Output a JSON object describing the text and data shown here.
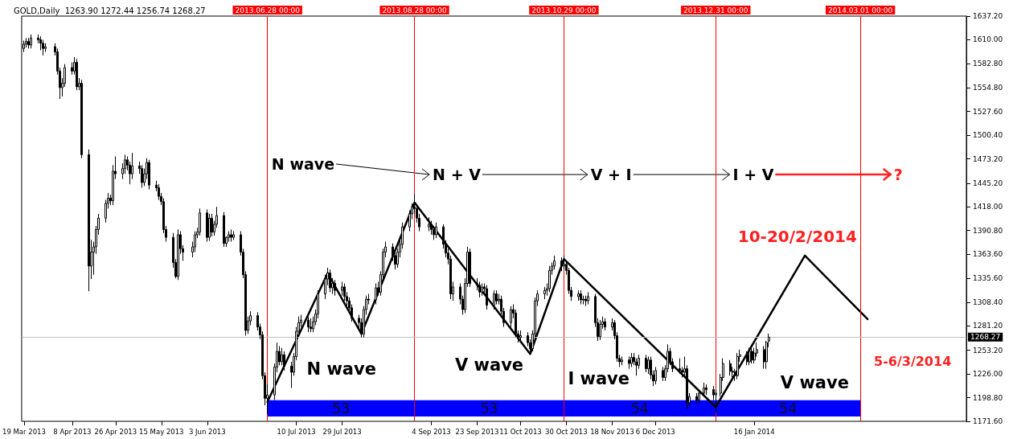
{
  "chart_data": {
    "type": "candlestick",
    "title": "GOLD,Daily  1263.90 1272.44 1256.74 1268.27",
    "xlim": [
      "2013-03-18",
      "2014-04-14"
    ],
    "xticks": [
      {
        "value": "2013-03-19",
        "label": "19 Mar 2013"
      },
      {
        "value": "2013-04-08",
        "label": "8 Apr 2013"
      },
      {
        "value": "2013-04-26",
        "label": "26 Apr 2013"
      },
      {
        "value": "2013-05-15",
        "label": "15 May 2013"
      },
      {
        "value": "2013-06-03",
        "label": "3 Jun 2013"
      },
      {
        "value": "2013-07-10",
        "label": "10 Jul 2013"
      },
      {
        "value": "2013-07-29",
        "label": "29 Jul 2013"
      },
      {
        "value": "2013-09-04",
        "label": "4 Sep 2013"
      },
      {
        "value": "2013-09-23",
        "label": "23 Sep 2013"
      },
      {
        "value": "2013-10-11",
        "label": "11 Oct 2013"
      },
      {
        "value": "2013-10-30",
        "label": "30 Oct 2013"
      },
      {
        "value": "2013-11-18",
        "label": "18 Nov 2013"
      },
      {
        "value": "2013-12-06",
        "label": "6 Dec 2013"
      },
      {
        "value": "2014-01-16",
        "label": "16 Jan 2014"
      }
    ],
    "ylim": [
      1171.6,
      1637.2
    ],
    "yticks": [
      {
        "value": 1171.6,
        "label": "1171.60"
      },
      {
        "value": 1198.8,
        "label": "1198.80"
      },
      {
        "value": 1226,
        "label": "1226.00"
      },
      {
        "value": 1253.2,
        "label": "1253.20"
      },
      {
        "value": 1281.2,
        "label": "1281.20"
      },
      {
        "value": 1308.4,
        "label": "1308.40"
      },
      {
        "value": 1335.6,
        "label": "1335.60"
      },
      {
        "value": 1363.6,
        "label": "1363.60"
      },
      {
        "value": 1390.8,
        "label": "1390.80"
      },
      {
        "value": 1418,
        "label": "1418.00"
      },
      {
        "value": 1445.2,
        "label": "1445.20"
      },
      {
        "value": 1473.2,
        "label": "1473.20"
      },
      {
        "value": 1500.4,
        "label": "1500.40"
      },
      {
        "value": 1527.6,
        "label": "1527.60"
      },
      {
        "value": 1554.8,
        "label": "1554.80"
      },
      {
        "value": 1582.8,
        "label": "1582.80"
      },
      {
        "value": 1610,
        "label": "1610.00"
      },
      {
        "value": 1637.2,
        "label": "1637.20"
      }
    ],
    "series": [
      {
        "color": "#000000",
        "x": [
          "2013-03-19",
          "2013-03-20",
          "2013-03-21",
          "2013-03-22",
          "2013-03-25",
          "2013-03-26",
          "2013-03-27",
          "2013-03-28",
          "2013-04-01",
          "2013-04-02",
          "2013-04-03",
          "2013-04-04",
          "2013-04-05",
          "2013-04-08",
          "2013-04-09",
          "2013-04-10",
          "2013-04-11",
          "2013-04-12",
          "2013-04-15",
          "2013-04-16",
          "2013-04-17",
          "2013-04-18",
          "2013-04-19",
          "2013-04-22",
          "2013-04-23",
          "2013-04-24",
          "2013-04-25",
          "2013-04-26",
          "2013-04-29",
          "2013-04-30",
          "2013-05-01",
          "2013-05-02",
          "2013-05-03",
          "2013-05-06",
          "2013-05-07",
          "2013-05-08",
          "2013-05-09",
          "2013-05-10",
          "2013-05-13",
          "2013-05-14",
          "2013-05-15",
          "2013-05-16",
          "2013-05-17",
          "2013-05-20",
          "2013-05-21",
          "2013-05-22",
          "2013-05-23",
          "2013-05-24",
          "2013-05-28",
          "2013-05-29",
          "2013-05-30",
          "2013-05-31",
          "2013-06-03",
          "2013-06-04",
          "2013-06-05",
          "2013-06-06",
          "2013-06-07",
          "2013-06-10",
          "2013-06-11",
          "2013-06-12",
          "2013-06-13",
          "2013-06-14",
          "2013-06-17",
          "2013-06-18",
          "2013-06-19",
          "2013-06-20",
          "2013-06-21",
          "2013-06-24",
          "2013-06-25",
          "2013-06-26",
          "2013-06-27",
          "2013-06-28",
          "2013-07-01",
          "2013-07-02",
          "2013-07-03",
          "2013-07-04",
          "2013-07-05",
          "2013-07-08",
          "2013-07-09",
          "2013-07-10",
          "2013-07-11",
          "2013-07-12",
          "2013-07-15",
          "2013-07-16",
          "2013-07-17",
          "2013-07-18",
          "2013-07-19",
          "2013-07-22",
          "2013-07-23",
          "2013-07-24",
          "2013-07-25",
          "2013-07-26",
          "2013-07-29",
          "2013-07-30",
          "2013-07-31",
          "2013-08-01",
          "2013-08-02",
          "2013-08-05",
          "2013-08-06",
          "2013-08-07",
          "2013-08-08",
          "2013-08-09",
          "2013-08-12",
          "2013-08-13",
          "2013-08-14",
          "2013-08-15",
          "2013-08-16",
          "2013-08-19",
          "2013-08-20",
          "2013-08-21",
          "2013-08-22",
          "2013-08-23",
          "2013-08-26",
          "2013-08-27",
          "2013-08-28",
          "2013-08-29",
          "2013-08-30",
          "2013-09-03",
          "2013-09-04",
          "2013-09-05",
          "2013-09-06",
          "2013-09-09",
          "2013-09-10",
          "2013-09-11",
          "2013-09-12",
          "2013-09-13",
          "2013-09-16",
          "2013-09-17",
          "2013-09-18",
          "2013-09-19",
          "2013-09-20",
          "2013-09-23",
          "2013-09-24",
          "2013-09-25",
          "2013-09-26",
          "2013-09-27",
          "2013-09-30",
          "2013-10-01",
          "2013-10-02",
          "2013-10-03",
          "2013-10-04",
          "2013-10-07",
          "2013-10-08",
          "2013-10-09",
          "2013-10-10",
          "2013-10-11",
          "2013-10-14",
          "2013-10-15",
          "2013-10-16",
          "2013-10-17",
          "2013-10-18",
          "2013-10-21",
          "2013-10-22",
          "2013-10-23",
          "2013-10-24",
          "2013-10-25",
          "2013-10-28",
          "2013-10-29",
          "2013-10-30",
          "2013-10-31",
          "2013-11-01",
          "2013-11-04",
          "2013-11-05",
          "2013-11-06",
          "2013-11-07",
          "2013-11-08",
          "2013-11-11",
          "2013-11-12",
          "2013-11-13",
          "2013-11-14",
          "2013-11-15",
          "2013-11-18",
          "2013-11-19",
          "2013-11-20",
          "2013-11-21",
          "2013-11-22",
          "2013-11-25",
          "2013-11-26",
          "2013-11-27",
          "2013-11-28",
          "2013-11-29",
          "2013-12-02",
          "2013-12-03",
          "2013-12-04",
          "2013-12-05",
          "2013-12-06",
          "2013-12-09",
          "2013-12-10",
          "2013-12-11",
          "2013-12-12",
          "2013-12-13",
          "2013-12-16",
          "2013-12-17",
          "2013-12-18",
          "2013-12-19",
          "2013-12-20",
          "2013-12-23",
          "2013-12-24",
          "2013-12-26",
          "2013-12-27",
          "2013-12-30",
          "2013-12-31",
          "2014-01-02",
          "2014-01-03",
          "2014-01-06",
          "2014-01-07",
          "2014-01-08",
          "2014-01-09",
          "2014-01-10",
          "2014-01-13",
          "2014-01-14",
          "2014-01-15",
          "2014-01-16",
          "2014-01-17",
          "2014-01-20",
          "2014-01-21",
          "2014-01-22"
        ],
        "ohlc": [
          [
            1600,
            1609,
            1596,
            1605
          ],
          [
            1605,
            1612,
            1601,
            1608
          ],
          [
            1608,
            1612,
            1600,
            1604
          ],
          [
            1604,
            1616,
            1600,
            1612
          ],
          [
            1612,
            1616,
            1606,
            1610
          ],
          [
            1610,
            1614,
            1598,
            1606
          ],
          [
            1606,
            1610,
            1592,
            1600
          ],
          [
            1600,
            1606,
            1596,
            1602
          ],
          [
            1602,
            1606,
            1592,
            1596
          ],
          [
            1596,
            1600,
            1570,
            1574
          ],
          [
            1574,
            1578,
            1542,
            1555
          ],
          [
            1555,
            1566,
            1545,
            1560
          ],
          [
            1560,
            1582,
            1556,
            1578
          ],
          [
            1578,
            1584,
            1570,
            1574
          ],
          [
            1574,
            1590,
            1570,
            1584
          ],
          [
            1584,
            1588,
            1552,
            1556
          ],
          [
            1556,
            1566,
            1552,
            1560
          ],
          [
            1560,
            1564,
            1474,
            1478
          ],
          [
            1478,
            1484,
            1321,
            1350
          ],
          [
            1350,
            1380,
            1335,
            1366
          ],
          [
            1366,
            1378,
            1340,
            1372
          ],
          [
            1372,
            1396,
            1364,
            1392
          ],
          [
            1392,
            1410,
            1386,
            1405
          ],
          [
            1405,
            1426,
            1400,
            1422
          ],
          [
            1422,
            1434,
            1416,
            1428
          ],
          [
            1428,
            1432,
            1420,
            1425
          ],
          [
            1425,
            1466,
            1420,
            1459
          ],
          [
            1459,
            1476,
            1450,
            1456
          ],
          [
            1456,
            1468,
            1450,
            1462
          ],
          [
            1462,
            1478,
            1456,
            1472
          ],
          [
            1472,
            1476,
            1460,
            1466
          ],
          [
            1466,
            1470,
            1444,
            1456
          ],
          [
            1456,
            1480,
            1450,
            1465
          ],
          [
            1465,
            1470,
            1456,
            1462
          ],
          [
            1462,
            1466,
            1440,
            1446
          ],
          [
            1446,
            1462,
            1442,
            1456
          ],
          [
            1456,
            1474,
            1450,
            1469
          ],
          [
            1469,
            1472,
            1438,
            1443
          ],
          [
            1443,
            1448,
            1436,
            1440
          ],
          [
            1440,
            1444,
            1426,
            1430
          ],
          [
            1430,
            1434,
            1420,
            1424
          ],
          [
            1424,
            1428,
            1388,
            1392
          ],
          [
            1392,
            1396,
            1378,
            1383
          ],
          [
            1383,
            1388,
            1348,
            1354
          ],
          [
            1354,
            1358,
            1336,
            1338
          ],
          [
            1338,
            1392,
            1334,
            1386
          ],
          [
            1386,
            1390,
            1364,
            1370
          ],
          [
            1370,
            1374,
            1356,
            1366
          ],
          [
            1366,
            1378,
            1360,
            1372
          ],
          [
            1372,
            1390,
            1366,
            1386
          ],
          [
            1386,
            1394,
            1382,
            1389
          ],
          [
            1389,
            1416,
            1385,
            1411
          ],
          [
            1411,
            1415,
            1378,
            1383
          ],
          [
            1383,
            1410,
            1379,
            1405
          ],
          [
            1405,
            1410,
            1384,
            1389
          ],
          [
            1389,
            1402,
            1385,
            1398
          ],
          [
            1398,
            1418,
            1394,
            1408
          ],
          [
            1408,
            1412,
            1372,
            1376
          ],
          [
            1376,
            1384,
            1372,
            1383
          ],
          [
            1383,
            1390,
            1378,
            1386
          ],
          [
            1386,
            1392,
            1378,
            1383
          ],
          [
            1383,
            1390,
            1380,
            1386
          ],
          [
            1386,
            1390,
            1362,
            1366
          ],
          [
            1366,
            1370,
            1336,
            1340
          ],
          [
            1340,
            1344,
            1270,
            1276
          ],
          [
            1276,
            1292,
            1272,
            1287
          ],
          [
            1287,
            1298,
            1282,
            1293
          ],
          [
            1293,
            1297,
            1276,
            1280
          ],
          [
            1280,
            1284,
            1266,
            1271
          ],
          [
            1271,
            1275,
            1220,
            1224
          ],
          [
            1224,
            1228,
            1190,
            1198
          ],
          [
            1198,
            1214,
            1180,
            1202
          ],
          [
            1202,
            1238,
            1196,
            1234
          ],
          [
            1234,
            1262,
            1228,
            1252
          ],
          [
            1252,
            1258,
            1236,
            1240
          ],
          [
            1240,
            1256,
            1236,
            1248
          ],
          [
            1248,
            1252,
            1230,
            1235
          ],
          [
            1235,
            1240,
            1210,
            1228
          ],
          [
            1228,
            1250,
            1224,
            1246
          ],
          [
            1246,
            1280,
            1242,
            1275
          ],
          [
            1275,
            1292,
            1270,
            1285
          ],
          [
            1285,
            1294,
            1280,
            1288
          ],
          [
            1288,
            1292,
            1274,
            1280
          ],
          [
            1280,
            1290,
            1274,
            1278
          ],
          [
            1278,
            1292,
            1274,
            1286
          ],
          [
            1286,
            1300,
            1282,
            1295
          ],
          [
            1295,
            1322,
            1290,
            1318
          ],
          [
            1318,
            1340,
            1312,
            1335
          ],
          [
            1335,
            1348,
            1328,
            1342
          ],
          [
            1342,
            1346,
            1320,
            1325
          ],
          [
            1325,
            1336,
            1318,
            1330
          ],
          [
            1330,
            1334,
            1316,
            1322
          ],
          [
            1322,
            1332,
            1316,
            1326
          ],
          [
            1326,
            1330,
            1310,
            1315
          ],
          [
            1315,
            1320,
            1304,
            1310
          ],
          [
            1310,
            1314,
            1296,
            1302
          ],
          [
            1302,
            1306,
            1286,
            1290
          ],
          [
            1290,
            1294,
            1278,
            1285
          ],
          [
            1285,
            1290,
            1268,
            1272
          ],
          [
            1272,
            1304,
            1268,
            1300
          ],
          [
            1300,
            1316,
            1294,
            1312
          ],
          [
            1312,
            1318,
            1306,
            1311
          ],
          [
            1311,
            1330,
            1306,
            1325
          ],
          [
            1325,
            1332,
            1316,
            1320
          ],
          [
            1320,
            1344,
            1316,
            1340
          ],
          [
            1340,
            1370,
            1336,
            1366
          ],
          [
            1366,
            1378,
            1360,
            1372
          ],
          [
            1372,
            1376,
            1356,
            1362
          ],
          [
            1362,
            1366,
            1346,
            1352
          ],
          [
            1352,
            1370,
            1348,
            1366
          ],
          [
            1366,
            1380,
            1360,
            1375
          ],
          [
            1375,
            1400,
            1370,
            1395
          ],
          [
            1395,
            1414,
            1390,
            1410
          ],
          [
            1410,
            1422,
            1404,
            1418
          ],
          [
            1418,
            1433,
            1410,
            1416
          ],
          [
            1416,
            1420,
            1400,
            1405
          ],
          [
            1405,
            1410,
            1390,
            1395
          ],
          [
            1395,
            1406,
            1390,
            1398
          ],
          [
            1398,
            1402,
            1386,
            1392
          ],
          [
            1392,
            1396,
            1380,
            1386
          ],
          [
            1386,
            1400,
            1382,
            1395
          ],
          [
            1395,
            1398,
            1370,
            1375
          ],
          [
            1375,
            1380,
            1360,
            1365
          ],
          [
            1365,
            1370,
            1352,
            1358
          ],
          [
            1358,
            1362,
            1312,
            1318
          ],
          [
            1318,
            1332,
            1310,
            1326
          ],
          [
            1326,
            1330,
            1306,
            1312
          ],
          [
            1312,
            1316,
            1294,
            1300
          ],
          [
            1300,
            1336,
            1296,
            1330
          ],
          [
            1330,
            1372,
            1326,
            1366
          ],
          [
            1366,
            1370,
            1326,
            1330
          ],
          [
            1330,
            1336,
            1322,
            1328
          ],
          [
            1328,
            1332,
            1314,
            1320
          ],
          [
            1320,
            1330,
            1316,
            1326
          ],
          [
            1326,
            1330,
            1318,
            1324
          ],
          [
            1324,
            1328,
            1300,
            1305
          ],
          [
            1305,
            1322,
            1300,
            1318
          ],
          [
            1318,
            1322,
            1306,
            1310
          ],
          [
            1310,
            1318,
            1306,
            1312
          ],
          [
            1312,
            1316,
            1292,
            1298
          ],
          [
            1298,
            1302,
            1280,
            1285
          ],
          [
            1285,
            1304,
            1280,
            1300
          ],
          [
            1300,
            1306,
            1290,
            1296
          ],
          [
            1296,
            1300,
            1268,
            1272
          ],
          [
            1272,
            1276,
            1262,
            1268
          ],
          [
            1268,
            1276,
            1264,
            1270
          ],
          [
            1270,
            1274,
            1258,
            1262
          ],
          [
            1262,
            1266,
            1251,
            1255
          ],
          [
            1255,
            1276,
            1252,
            1272
          ],
          [
            1272,
            1314,
            1268,
            1310
          ],
          [
            1310,
            1322,
            1304,
            1318
          ],
          [
            1318,
            1326,
            1312,
            1322
          ],
          [
            1322,
            1330,
            1316,
            1324
          ],
          [
            1324,
            1350,
            1320,
            1345
          ],
          [
            1345,
            1354,
            1340,
            1350
          ],
          [
            1350,
            1362,
            1346,
            1356
          ],
          [
            1356,
            1360,
            1344,
            1350
          ],
          [
            1350,
            1362,
            1346,
            1352
          ],
          [
            1352,
            1356,
            1340,
            1345
          ],
          [
            1345,
            1348,
            1318,
            1322
          ],
          [
            1322,
            1326,
            1310,
            1315
          ],
          [
            1315,
            1322,
            1310,
            1318
          ],
          [
            1318,
            1322,
            1306,
            1311
          ],
          [
            1311,
            1316,
            1306,
            1312
          ],
          [
            1312,
            1316,
            1304,
            1310
          ],
          [
            1310,
            1320,
            1306,
            1315
          ],
          [
            1315,
            1318,
            1280,
            1285
          ],
          [
            1285,
            1290,
            1264,
            1269
          ],
          [
            1269,
            1288,
            1265,
            1283
          ],
          [
            1283,
            1292,
            1278,
            1286
          ],
          [
            1286,
            1290,
            1276,
            1280
          ],
          [
            1280,
            1290,
            1276,
            1285
          ],
          [
            1285,
            1288,
            1266,
            1270
          ],
          [
            1270,
            1274,
            1240,
            1244
          ],
          [
            1244,
            1248,
            1234,
            1240
          ],
          [
            1240,
            1246,
            1236,
            1242
          ],
          [
            1242,
            1246,
            1232,
            1238
          ],
          [
            1238,
            1250,
            1234,
            1245
          ],
          [
            1245,
            1250,
            1236,
            1240
          ],
          [
            1240,
            1244,
            1224,
            1236
          ],
          [
            1236,
            1248,
            1232,
            1244
          ],
          [
            1244,
            1248,
            1228,
            1232
          ],
          [
            1232,
            1246,
            1226,
            1242
          ],
          [
            1242,
            1246,
            1220,
            1225
          ],
          [
            1225,
            1230,
            1212,
            1218
          ],
          [
            1218,
            1234,
            1214,
            1230
          ],
          [
            1230,
            1234,
            1218,
            1222
          ],
          [
            1222,
            1236,
            1218,
            1232
          ],
          [
            1232,
            1260,
            1228,
            1252
          ],
          [
            1252,
            1256,
            1236,
            1240
          ],
          [
            1240,
            1244,
            1228,
            1232
          ],
          [
            1232,
            1244,
            1226,
            1230
          ],
          [
            1230,
            1234,
            1222,
            1228
          ],
          [
            1228,
            1246,
            1224,
            1232
          ],
          [
            1232,
            1236,
            1186,
            1193
          ],
          [
            1193,
            1204,
            1188,
            1200
          ],
          [
            1200,
            1204,
            1192,
            1196
          ],
          [
            1196,
            1208,
            1192,
            1204
          ],
          [
            1204,
            1216,
            1200,
            1210
          ],
          [
            1210,
            1214,
            1202,
            1208
          ],
          [
            1208,
            1212,
            1196,
            1202
          ],
          [
            1202,
            1208,
            1182,
            1204
          ],
          [
            1204,
            1226,
            1200,
            1222
          ],
          [
            1222,
            1244,
            1218,
            1238
          ],
          [
            1238,
            1242,
            1224,
            1229
          ],
          [
            1229,
            1234,
            1222,
            1228
          ],
          [
            1228,
            1232,
            1218,
            1224
          ],
          [
            1224,
            1250,
            1220,
            1246
          ],
          [
            1246,
            1254,
            1240,
            1248
          ],
          [
            1248,
            1252,
            1236,
            1240
          ],
          [
            1240,
            1256,
            1236,
            1252
          ],
          [
            1252,
            1256,
            1238,
            1242
          ],
          [
            1242,
            1256,
            1238,
            1250
          ],
          [
            1250,
            1262,
            1246,
            1254
          ],
          [
            1254,
            1258,
            1232,
            1240
          ],
          [
            1240,
            1264,
            1232,
            1262
          ],
          [
            1263.9,
            1272.44,
            1256.74,
            1268.27
          ]
        ]
      },
      {
        "type": "line",
        "color": "#000000",
        "marker": "none",
        "x": [
          "2013-06-28",
          "2013-07-23",
          "2013-08-06",
          "2013-08-28",
          "2013-10-15",
          "2013-10-29",
          "2013-12-31",
          "2014-02-06",
          "2014-03-04"
        ],
        "values": [
          1194,
          1342,
          1272,
          1423,
          1249,
          1358,
          1188,
          1362,
          1289
        ]
      }
    ],
    "ref_lines": [
      {
        "axis": "x",
        "value": "2013-06-28",
        "label": "2013.06.28 00:00",
        "color": "#ff0000"
      },
      {
        "axis": "x",
        "value": "2013-08-28",
        "label": "2013.08.28 00:00",
        "color": "#ff0000"
      },
      {
        "axis": "x",
        "value": "2013-10-29",
        "label": "2013.10.29 00:00",
        "color": "#ff0000"
      },
      {
        "axis": "x",
        "value": "2013-12-31",
        "label": "2013.12.31 00:00",
        "color": "#ff0000"
      },
      {
        "axis": "x",
        "value": "2014-03-01",
        "label": "2014.03.01 00:00",
        "color": "#ff0000"
      },
      {
        "axis": "y",
        "value": 1268.27,
        "label": "1268.27",
        "color": "#c0c0c0"
      }
    ],
    "bands": [
      {
        "axis": "x",
        "from": "2013-06-28",
        "to": "2013-08-28",
        "label": "53",
        "color": "#0000ff"
      },
      {
        "axis": "x",
        "from": "2013-08-28",
        "to": "2013-10-29",
        "label": "53",
        "color": "#0000ff"
      },
      {
        "axis": "x",
        "from": "2013-10-29",
        "to": "2013-12-31",
        "label": "54",
        "color": "#0000ff"
      },
      {
        "axis": "x",
        "from": "2013-12-31",
        "to": "2014-03-01",
        "label": "54",
        "color": "#0000ff"
      }
    ],
    "annotations": [
      "N wave",
      "N + V",
      "V + I",
      "I + V",
      "?",
      "N wave",
      "V wave",
      "I wave",
      "V wave",
      "10-20/2/2014",
      "5-6/3/2014"
    ]
  }
}
